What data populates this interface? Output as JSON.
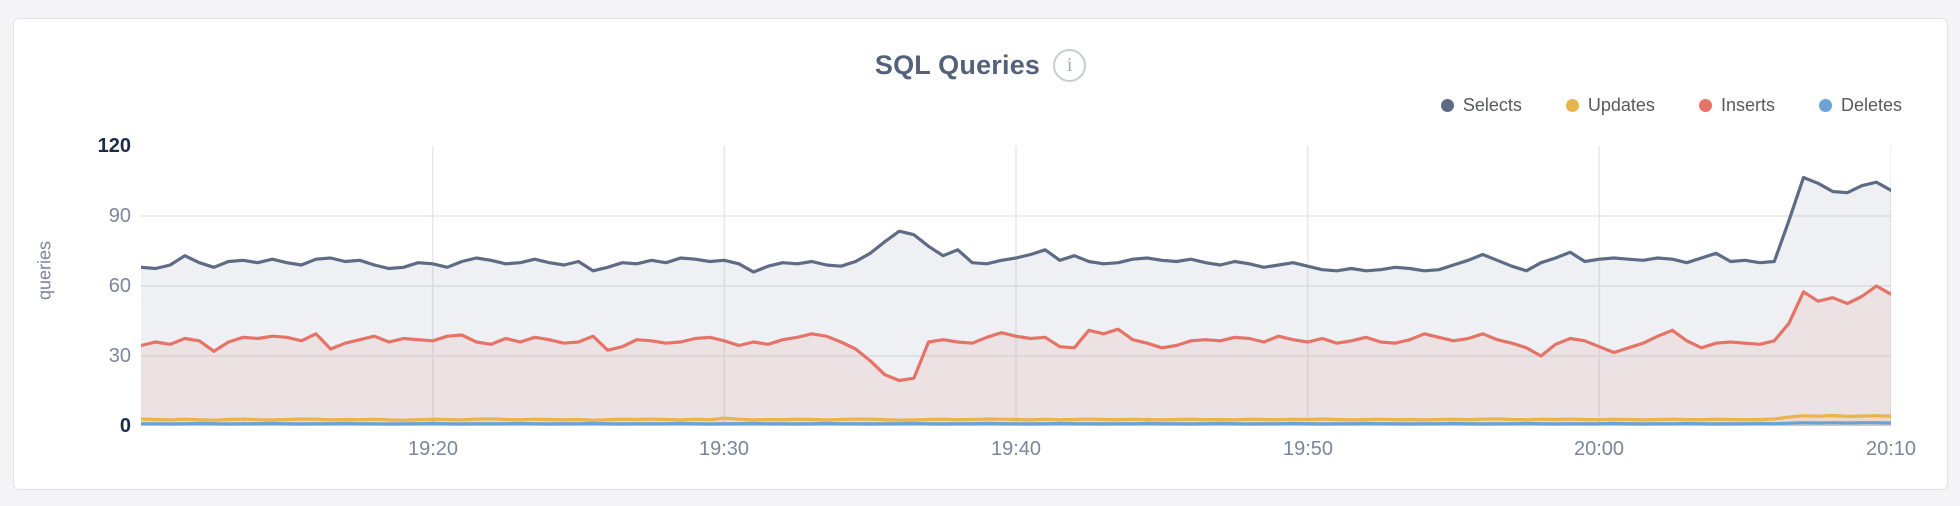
{
  "card": {
    "info_glyph": "i"
  },
  "chart_data": {
    "type": "area",
    "title": "SQL Queries",
    "ylabel": "queries",
    "ylim": [
      0,
      120
    ],
    "y_ticks": [
      0,
      30,
      60,
      90,
      120
    ],
    "x_ticks": [
      "19:20",
      "19:30",
      "19:40",
      "19:50",
      "20:00",
      "20:10"
    ],
    "x_range_start": "19:10",
    "x_range_end": "20:10",
    "interval_seconds": 30,
    "grid": true,
    "legend_position": "top-right",
    "colors": {
      "grid": "#e8e8ea",
      "axis_label_major": "#1d2b49",
      "axis_label_minor": "#7d8699",
      "title": "#55617a"
    },
    "series": [
      {
        "name": "Selects",
        "color": "#5e6b85",
        "fill": "rgba(99,112,138,0.10)",
        "values": [
          68,
          67.5,
          69,
          73,
          70,
          68,
          70.5,
          71,
          70,
          71.5,
          70,
          69,
          71.5,
          72,
          70.5,
          71,
          69,
          67.5,
          68,
          70,
          69.5,
          68,
          70.5,
          72,
          71,
          69.5,
          70,
          71.5,
          70,
          69,
          70.5,
          66.5,
          68,
          70,
          69.5,
          71,
          70,
          72,
          71.5,
          70.5,
          71,
          69.5,
          66,
          68.5,
          70,
          69.5,
          70.5,
          69,
          68.5,
          70.5,
          74,
          79,
          83.5,
          82,
          77,
          73,
          75.5,
          70,
          69.5,
          71,
          72,
          73.5,
          75.5,
          71,
          73,
          70.5,
          69.5,
          70,
          71.5,
          72,
          71,
          70.5,
          71.5,
          70,
          69,
          70.5,
          69.5,
          68,
          69,
          70,
          68.5,
          67,
          66.5,
          67.5,
          66.5,
          67,
          68,
          67.5,
          66.5,
          67,
          69,
          71,
          73.5,
          71,
          68.5,
          66.5,
          70,
          72,
          74.5,
          70.5,
          71.5,
          72,
          71.5,
          71,
          72,
          71.5,
          70,
          72,
          74,
          70.5,
          71,
          70,
          70.5,
          88,
          106.5,
          104,
          100.5,
          100,
          103,
          104.5,
          101
        ]
      },
      {
        "name": "Updates",
        "color": "#eab44d",
        "fill": "rgba(234,180,77,0.16)",
        "values": [
          3,
          2.8,
          2.6,
          2.9,
          2.7,
          2.5,
          2.8,
          3,
          2.7,
          2.6,
          2.8,
          3,
          2.9,
          2.6,
          2.8,
          2.7,
          2.9,
          2.6,
          2.5,
          2.7,
          2.9,
          2.8,
          2.6,
          2.9,
          3.1,
          2.8,
          2.7,
          2.9,
          2.8,
          2.6,
          2.8,
          2.5,
          2.7,
          2.9,
          2.8,
          3,
          2.8,
          2.6,
          2.9,
          2.7,
          3.4,
          2.9,
          2.6,
          2.8,
          2.7,
          2.9,
          2.8,
          2.6,
          2.8,
          3,
          2.9,
          2.7,
          2.5,
          2.6,
          2.8,
          2.9,
          2.7,
          2.8,
          3,
          2.9,
          2.8,
          2.6,
          2.9,
          2.7,
          2.8,
          3,
          2.8,
          2.7,
          2.9,
          2.8,
          2.6,
          2.8,
          2.9,
          2.7,
          2.8,
          2.6,
          2.9,
          2.8,
          2.7,
          2.9,
          2.8,
          3,
          2.8,
          2.6,
          2.8,
          2.9,
          2.7,
          2.8,
          2.6,
          2.8,
          2.9,
          2.7,
          2.9,
          3.1,
          2.8,
          2.7,
          2.9,
          2.8,
          3,
          2.8,
          2.7,
          2.9,
          2.8,
          2.6,
          2.8,
          2.9,
          2.8,
          2.7,
          2.9,
          2.8,
          2.7,
          2.8,
          3,
          3.8,
          4.4,
          4.2,
          4.5,
          4.1,
          4.3,
          4.4,
          4.2
        ]
      },
      {
        "name": "Inserts",
        "color": "#e57368",
        "fill": "rgba(229,115,104,0.11)",
        "values": [
          34.5,
          36,
          35,
          37.5,
          36.5,
          32,
          36,
          38,
          37.5,
          38.5,
          38,
          36.5,
          39.5,
          33,
          35.5,
          37,
          38.5,
          36,
          37.5,
          37,
          36.5,
          38.5,
          39,
          36,
          35,
          37.5,
          36,
          38,
          37,
          35.5,
          36,
          38.5,
          32.5,
          34,
          37,
          36.5,
          35.5,
          36,
          37.5,
          38,
          36.5,
          34.5,
          36,
          35,
          37,
          38,
          39.5,
          38.5,
          36,
          33,
          28,
          22,
          19.5,
          20.5,
          36,
          37,
          36,
          35.5,
          38,
          40,
          38.5,
          37.5,
          38,
          34,
          33.5,
          41,
          39.5,
          41.5,
          37,
          35.5,
          33.5,
          34.5,
          36.5,
          37,
          36.5,
          38,
          37.5,
          36,
          38.5,
          37,
          36,
          37.5,
          35.5,
          36.5,
          38,
          36,
          35.5,
          37,
          39.5,
          38,
          36.5,
          37.5,
          39.5,
          37,
          35.5,
          33.5,
          30,
          35,
          37.5,
          36.5,
          34,
          31.5,
          33.5,
          35.5,
          38.5,
          41,
          36.5,
          33.5,
          35.5,
          36,
          35.5,
          35,
          36.5,
          44,
          57.5,
          53.5,
          55,
          52.5,
          55.5,
          60,
          56.5
        ]
      },
      {
        "name": "Deletes",
        "color": "#6ba4d4",
        "fill": "rgba(107,164,212,0.25)",
        "values": [
          1,
          1,
          0.9,
          1,
          1.1,
          1,
          0.9,
          1,
          1,
          1.1,
          1,
          0.9,
          1,
          1,
          1.1,
          1,
          1,
          0.9,
          1,
          1,
          1.1,
          1,
          0.9,
          1,
          1,
          1,
          1.1,
          1,
          0.9,
          1,
          1,
          1.1,
          1,
          0.9,
          1,
          1,
          1,
          1.1,
          1,
          0.9,
          1,
          1,
          1.1,
          1,
          1,
          0.9,
          1,
          1.1,
          1,
          1,
          0.9,
          1,
          1,
          1.1,
          1,
          0.9,
          1,
          1,
          1.1,
          1,
          1,
          0.9,
          1,
          1.1,
          1,
          1,
          0.9,
          1,
          1,
          1.1,
          1,
          1,
          0.9,
          1,
          1.1,
          1,
          0.9,
          1,
          1,
          1.1,
          1,
          0.9,
          1,
          1,
          1.1,
          1,
          1,
          0.9,
          1,
          1,
          1.1,
          1,
          0.9,
          1,
          1,
          1.1,
          1,
          0.9,
          1,
          1,
          1,
          1.1,
          1,
          0.9,
          1,
          1,
          1.1,
          1,
          0.9,
          1,
          1,
          1.1,
          1,
          1.2,
          1.4,
          1.3,
          1.4,
          1.3,
          1.4,
          1.4,
          1.3
        ]
      }
    ]
  }
}
